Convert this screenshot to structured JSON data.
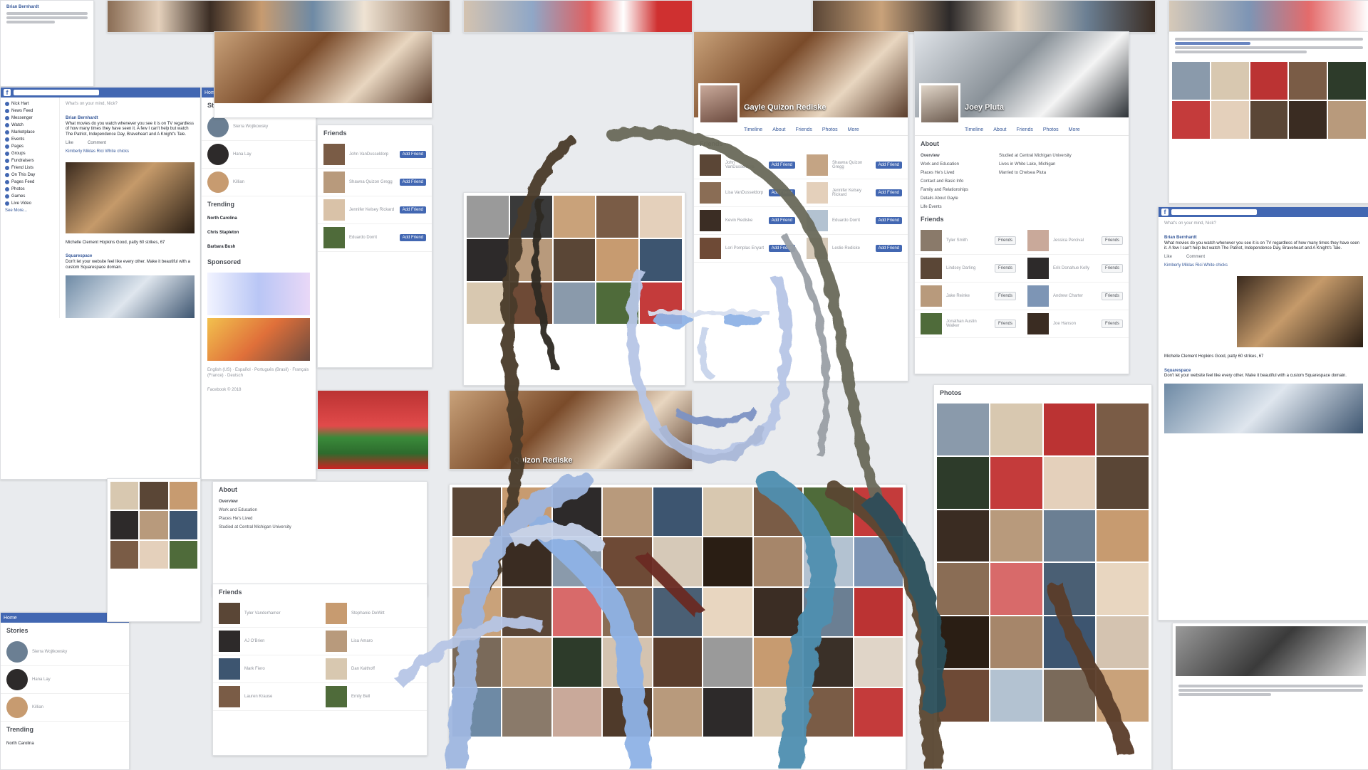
{
  "colors": {
    "fb_blue": "#4267b2",
    "ghost_blue": "#8fb3e6",
    "ghost_dark": "#3a3028"
  },
  "profiles": [
    {
      "name": "Gayle Quizon Rediske",
      "tabs": [
        "Timeline",
        "About",
        "Friends",
        "Photos",
        "More"
      ]
    },
    {
      "name": "Joey Pluta",
      "tabs": [
        "Timeline",
        "About",
        "Friends",
        "Photos",
        "More"
      ]
    },
    {
      "name": "Quizon Rediske"
    }
  ],
  "sections": {
    "friends": "Friends",
    "about": "About",
    "photos": "Photos",
    "overview": "Overview",
    "add_friend": "Add Friend",
    "friends_btn": "Friends"
  },
  "friends_list": [
    "John VanDusseldorp",
    "Shawna Quizon Gregg",
    "Jennifer Kelsey Rickard",
    "Eduardo Dorrit",
    "Lisa VanDusseldorp",
    "Kevin Rediske",
    "Lori Pomplas Enyart",
    "Leslie Rediske"
  ],
  "friends_list_2": [
    "Tyler Smith",
    "Jessica Percival",
    "Lindsey Darling",
    "Erik Donahue Kelly",
    "Jake Reinke",
    "Andrew Charter",
    "Jonathan Austin Walker",
    "Joe Hanson"
  ],
  "friends_list_3": [
    "Tyler Vanderhamer",
    "Stephanie DeWitt",
    "AJ O'Brien",
    "Lisa Amaro",
    "Mark Fiero",
    "Dan Kalthoff",
    "Lauren Krause",
    "Emily Bell"
  ],
  "about_items": [
    "Overview",
    "Work and Education",
    "Places He's Lived",
    "Contact and Basic Info",
    "Family and Relationships",
    "Details About Gayle",
    "Life Events"
  ],
  "about_values": [
    "Studied at Central Michigan University",
    "Lives in White Lake, Michigan",
    "Married to Chelsea Pluta"
  ],
  "feed": {
    "user": "Nick Hart",
    "nav": [
      "News Feed",
      "Messenger",
      "Watch",
      "Marketplace"
    ],
    "explore": [
      "Events",
      "Pages",
      "Groups",
      "Fundraisers",
      "Friend Lists",
      "On This Day",
      "Pages Feed",
      "Photos",
      "Games",
      "Live Video",
      "See More..."
    ],
    "composer": "What's on your mind, Nick?",
    "post_author": "Brian Bernhardt",
    "post_text": "What movies do you watch whenever you see it is on TV regardless of how many times they have seen it. A few I can't help but watch The Patriot, Independence Day, Braveheart and A Knight's Tale.",
    "like": "Like",
    "comment": "Comment",
    "commenter": "Kimberly Miklas Rici White chicks",
    "commenter2": "Michelle Clement Hopkins Good, patty 60 strikes, 67",
    "sponsored": "Squarespace",
    "sponsored_text": "Don't let your website feel like every other. Make it beautiful with a custom Squarespace domain."
  },
  "right_col": {
    "stories": "Stories",
    "story_names": [
      "Sierra Wojtkowsky",
      "Hana Lay",
      "Killian"
    ],
    "trending": "Trending",
    "trend1": "North Carolina",
    "trend2": "Chris Stapleton",
    "trend3": "Barbara Bush",
    "sponsored": "Sponsored",
    "footer": "English (US) · Español · Português (Brasil) · Français (France) · Deutsch",
    "copyright": "Facebook © 2018"
  },
  "topbar": {
    "home": "Home",
    "logo": "f"
  }
}
